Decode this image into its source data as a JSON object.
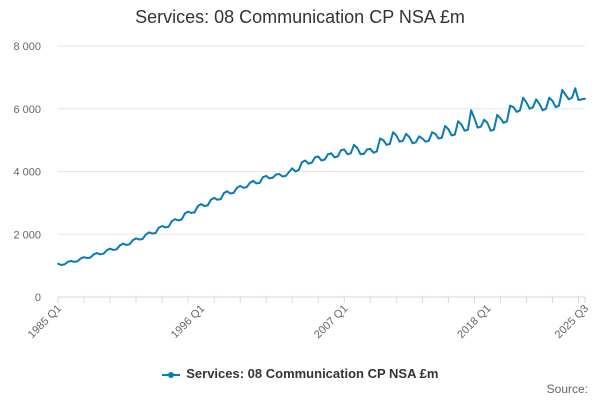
{
  "colors": {
    "series": "#0a7bb5",
    "grid": "#e6e6e6",
    "axis": "#ccd6eb",
    "text": "#666666"
  },
  "source_label": "Source:",
  "chart_data": {
    "type": "line",
    "title": "Services: 08 Communication CP NSA £m",
    "xlabel": "",
    "ylabel": "",
    "ylim": [
      0,
      8000
    ],
    "y_ticks": [
      {
        "value": 0,
        "label": "0"
      },
      {
        "value": 2000,
        "label": "2 000"
      },
      {
        "value": 4000,
        "label": "4 000"
      },
      {
        "value": 6000,
        "label": "6 000"
      },
      {
        "value": 8000,
        "label": "8 000"
      }
    ],
    "x_labels": [
      "1985 Q1",
      "1996 Q1",
      "2007 Q1",
      "2018 Q1",
      "2025 Q3"
    ],
    "x_start": "1985 Q1",
    "x_end": "2025 Q3",
    "grid": true,
    "legend_position": "bottom",
    "series": [
      {
        "name": "Services: 08 Communication CP NSA £m",
        "frequency": "quarterly",
        "values": [
          1060,
          1020,
          1040,
          1120,
          1150,
          1120,
          1140,
          1230,
          1270,
          1240,
          1260,
          1360,
          1400,
          1360,
          1380,
          1490,
          1540,
          1500,
          1520,
          1640,
          1700,
          1660,
          1680,
          1810,
          1870,
          1830,
          1850,
          1990,
          2060,
          2020,
          2040,
          2210,
          2260,
          2220,
          2240,
          2420,
          2480,
          2440,
          2470,
          2660,
          2720,
          2680,
          2700,
          2900,
          2960,
          2900,
          2920,
          3100,
          3160,
          3100,
          3120,
          3310,
          3370,
          3300,
          3320,
          3480,
          3540,
          3480,
          3500,
          3640,
          3700,
          3620,
          3640,
          3820,
          3860,
          3780,
          3800,
          3900,
          3920,
          3840,
          3860,
          3980,
          4100,
          4000,
          4050,
          4300,
          4350,
          4250,
          4280,
          4450,
          4480,
          4350,
          4380,
          4550,
          4580,
          4450,
          4480,
          4680,
          4700,
          4550,
          4580,
          4850,
          4750,
          4550,
          4560,
          4700,
          4720,
          4600,
          4640,
          5050,
          5000,
          4850,
          4880,
          5250,
          5150,
          4950,
          4980,
          5200,
          5100,
          4900,
          4930,
          5120,
          5050,
          4950,
          4980,
          5250,
          5200,
          5050,
          5080,
          5450,
          5350,
          5150,
          5180,
          5600,
          5500,
          5300,
          5330,
          5950,
          5700,
          5400,
          5430,
          5650,
          5550,
          5300,
          5330,
          5800,
          5700,
          5550,
          5600,
          6100,
          6050,
          5900,
          5950,
          6350,
          6200,
          6000,
          6050,
          6300,
          6150,
          5950,
          6000,
          6350,
          6250,
          6050,
          6100,
          6600,
          6450,
          6300,
          6350,
          6650,
          6280,
          6300,
          6320
        ]
      }
    ]
  }
}
